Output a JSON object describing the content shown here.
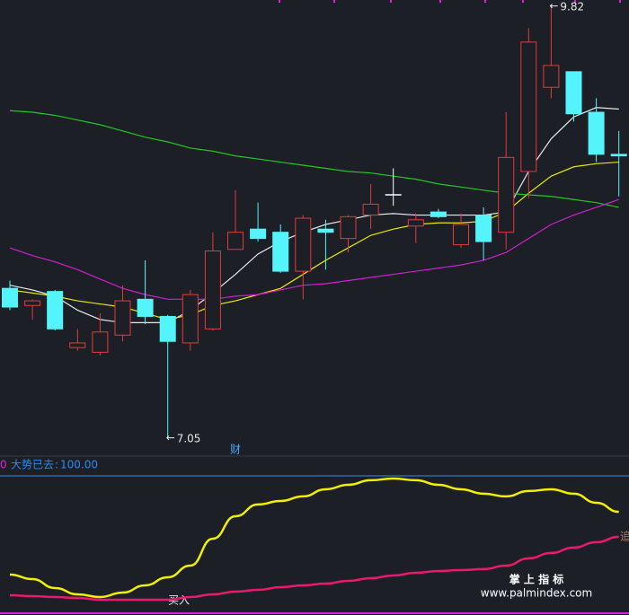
{
  "chart_data": [
    {
      "type": "candlestick",
      "ylim": [
        6.98,
        9.86
      ],
      "up_color": "#e03c3c",
      "down_color": "#54f4fc",
      "flat_color": "#ffffff",
      "open": [
        8.01,
        7.9,
        7.99,
        7.63,
        7.6,
        7.71,
        7.94,
        7.83,
        7.66,
        7.75,
        8.26,
        8.39,
        8.37,
        8.12,
        8.39,
        8.33,
        8.48,
        8.61,
        8.41,
        8.5,
        8.29,
        8.48,
        8.37,
        8.76,
        9.3,
        9.4,
        9.14,
        8.87
      ],
      "high": [
        8.06,
        7.94,
        8.0,
        7.75,
        7.85,
        8.03,
        8.19,
        7.84,
        8.0,
        8.37,
        8.64,
        8.56,
        8.42,
        8.48,
        8.45,
        8.48,
        8.68,
        8.78,
        8.49,
        8.52,
        8.49,
        8.53,
        9.14,
        9.68,
        9.82,
        9.4,
        9.23,
        9.02
      ],
      "low": [
        7.87,
        7.81,
        7.74,
        7.61,
        7.58,
        7.67,
        7.78,
        7.05,
        7.61,
        7.74,
        8.26,
        8.31,
        8.11,
        7.94,
        8.13,
        8.24,
        8.39,
        8.54,
        8.3,
        8.46,
        8.27,
        8.19,
        8.26,
        8.59,
        9.23,
        9.08,
        8.82,
        8.6
      ],
      "close": [
        7.89,
        7.93,
        7.75,
        7.66,
        7.73,
        7.93,
        7.83,
        7.67,
        7.97,
        8.25,
        8.37,
        8.33,
        8.12,
        8.46,
        8.37,
        8.47,
        8.55,
        8.61,
        8.45,
        8.47,
        8.42,
        8.31,
        8.85,
        9.59,
        9.44,
        9.13,
        8.87,
        8.86
      ],
      "lines": [
        {
          "color": "#e8e8e8",
          "values": [
            8.03,
            8.0,
            7.96,
            7.87,
            7.81,
            7.79,
            7.79,
            7.79,
            7.87,
            7.98,
            8.1,
            8.23,
            8.31,
            8.37,
            8.42,
            8.45,
            8.48,
            8.49,
            8.48,
            8.48,
            8.48,
            8.48,
            8.5,
            8.76,
            8.97,
            9.11,
            9.17,
            9.16
          ]
        },
        {
          "color": "#e8e800",
          "values": [
            8.0,
            7.98,
            7.96,
            7.93,
            7.91,
            7.89,
            7.85,
            7.81,
            7.84,
            7.9,
            7.93,
            7.97,
            8.01,
            8.1,
            8.19,
            8.27,
            8.35,
            8.39,
            8.42,
            8.43,
            8.43,
            8.44,
            8.5,
            8.62,
            8.73,
            8.79,
            8.81,
            8.82
          ]
        },
        {
          "color": "#22c822",
          "values": [
            9.15,
            9.14,
            9.12,
            9.09,
            9.06,
            9.02,
            8.98,
            8.95,
            8.91,
            8.89,
            8.86,
            8.84,
            8.82,
            8.8,
            8.78,
            8.76,
            8.75,
            8.73,
            8.71,
            8.68,
            8.66,
            8.64,
            8.62,
            8.61,
            8.6,
            8.58,
            8.56,
            8.53
          ]
        },
        {
          "color": "#d21ed2",
          "values": [
            8.27,
            8.22,
            8.18,
            8.13,
            8.07,
            8.01,
            7.97,
            7.94,
            7.94,
            7.94,
            7.96,
            7.97,
            8.0,
            8.03,
            8.04,
            8.06,
            8.08,
            8.1,
            8.12,
            8.14,
            8.16,
            8.19,
            8.24,
            8.33,
            8.42,
            8.48,
            8.53,
            8.58
          ]
        }
      ],
      "annotations": [
        {
          "value": 9.82,
          "label": "9.82"
        },
        {
          "value": 7.05,
          "label": "7.05"
        }
      ],
      "marker_text": "财"
    },
    {
      "type": "line",
      "ylim": [
        0,
        113.3
      ],
      "panel_label": "0",
      "indicator": {
        "name": "大势已去",
        "value": 100,
        "label": "100.00",
        "color": "#2a8cf0"
      },
      "series": [
        {
          "color": "#f0f000",
          "values": [
            26.7,
            23.3,
            16.7,
            12,
            10,
            13.3,
            18.7,
            24.7,
            33.3,
            53.3,
            70,
            78.7,
            81.3,
            84.7,
            90,
            93.3,
            96.7,
            98,
            96.7,
            93.3,
            90,
            86.7,
            84.7,
            88.7,
            90,
            86.7,
            80,
            73.3
          ]
        },
        {
          "color": "#e8196e",
          "values": [
            11.3,
            10.7,
            10,
            9.3,
            8,
            8,
            8,
            8,
            10,
            12,
            14,
            15.3,
            17.3,
            18.7,
            20,
            22,
            24,
            26,
            28,
            29.3,
            30,
            30.7,
            33.3,
            38.7,
            42.7,
            46.7,
            50.7,
            54.7
          ]
        }
      ],
      "buy_text": "买入",
      "chase_text": "追"
    }
  ],
  "watermark": {
    "title": "掌 上 指 标",
    "url": "www.palmindex.com"
  }
}
